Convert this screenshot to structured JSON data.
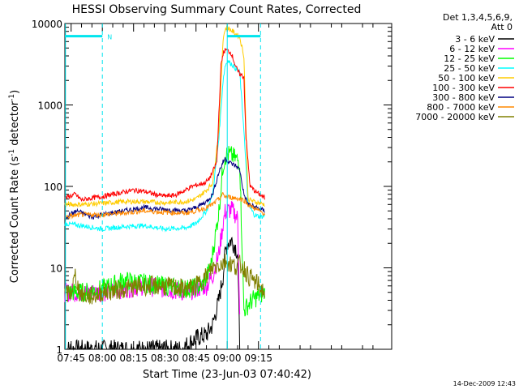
{
  "chart_data": {
    "type": "line",
    "title": "HESSI Observing Summary Count Rates, Corrected",
    "xlabel": "Start Time (23-Jun-03 07:40:42)",
    "ylabel": "Corrected Count Rate (s",
    "ylabel_sup": "-1",
    "ylabel_mid": " detector",
    "ylabel_sup2": "-1",
    "ylabel_end": ")",
    "y_scale": "log",
    "ylim": [
      1,
      10000
    ],
    "xlim_minutes": [
      42,
      199
    ],
    "x_ticks": [
      {
        "label": "07:45",
        "minutes": 45
      },
      {
        "label": "08:00",
        "minutes": 60
      },
      {
        "label": "08:15",
        "minutes": 75
      },
      {
        "label": "08:30",
        "minutes": 90
      },
      {
        "label": "08:45",
        "minutes": 105
      },
      {
        "label": "09:00",
        "minutes": 120
      },
      {
        "label": "09:15",
        "minutes": 135
      }
    ],
    "y_ticks": [
      {
        "label": "1",
        "value": 1
      },
      {
        "label": "10",
        "value": 10
      },
      {
        "label": "100",
        "value": 100
      },
      {
        "label": "1000",
        "value": 1000
      },
      {
        "label": "10000",
        "value": 10000
      }
    ],
    "legend_header": [
      "Det 1,3,4,5,6,9,",
      "Att 0"
    ],
    "legend_position": "right",
    "footer_date": "14-Dec-2009 12:43",
    "night_marker": "N",
    "series": [
      {
        "name": "3 - 6 keV",
        "color": "#000000",
        "x": [
          42,
          60,
          70,
          80,
          90,
          98,
          102,
          106,
          110,
          113,
          116,
          118,
          119,
          120,
          122,
          124,
          125,
          126
        ],
        "y": [
          1,
          1,
          1,
          1,
          1,
          1,
          1.2,
          1.4,
          1.5,
          2,
          4,
          8,
          15,
          20,
          22,
          18,
          15,
          1
        ]
      },
      {
        "name": "6 - 12 keV",
        "color": "#ff00ff",
        "x": [
          42,
          60,
          70,
          80,
          90,
          100,
          105,
          110,
          113,
          116,
          118,
          119,
          120,
          122,
          124,
          125,
          126
        ],
        "y": [
          5,
          5,
          5.5,
          6,
          5.5,
          5,
          5.5,
          6,
          8,
          15,
          35,
          48,
          50,
          52,
          45,
          40,
          3
        ]
      },
      {
        "name": "12 - 25 keV",
        "color": "#00ff00",
        "x": [
          42,
          50,
          60,
          70,
          80,
          90,
          100,
          108,
          112,
          116,
          118,
          119,
          120,
          122,
          124,
          126,
          128,
          130,
          132,
          135,
          138
        ],
        "y": [
          5,
          5,
          5.5,
          7,
          6.5,
          6,
          5.5,
          6,
          10,
          50,
          180,
          230,
          250,
          240,
          220,
          200,
          3,
          3.5,
          4,
          4.5,
          5
        ]
      },
      {
        "name": "25 - 50 keV",
        "color": "#00ffff",
        "x": [
          42,
          50,
          60,
          70,
          80,
          90,
          100,
          105,
          110,
          113,
          116,
          118,
          119,
          120,
          122,
          124,
          126,
          128,
          130,
          133,
          136,
          138
        ],
        "y": [
          35,
          33,
          30,
          32,
          33,
          30,
          31,
          35,
          50,
          80,
          400,
          2000,
          3000,
          3500,
          3200,
          2800,
          2500,
          500,
          60,
          45,
          42,
          44
        ]
      },
      {
        "name": "50 - 100 keV",
        "color": "#ffcc00",
        "x": [
          42,
          50,
          60,
          70,
          80,
          90,
          100,
          105,
          110,
          113,
          116,
          118,
          119,
          120,
          122,
          124,
          126,
          128,
          130,
          133,
          136,
          138
        ],
        "y": [
          60,
          60,
          62,
          65,
          65,
          63,
          65,
          70,
          90,
          110,
          500,
          6500,
          8500,
          9000,
          8200,
          7500,
          6800,
          4000,
          70,
          65,
          62,
          60
        ]
      },
      {
        "name": "100 - 300 keV",
        "color": "#ff0000",
        "x": [
          42,
          47,
          50,
          55,
          60,
          70,
          75,
          80,
          85,
          90,
          95,
          100,
          103,
          106,
          109,
          111,
          113,
          115,
          116,
          117,
          118,
          119,
          120,
          121,
          122,
          123,
          124,
          125,
          126,
          127,
          128,
          129,
          131,
          134,
          138
        ],
        "y": [
          72,
          80,
          68,
          72,
          75,
          85,
          90,
          87,
          80,
          76,
          78,
          90,
          100,
          105,
          110,
          120,
          150,
          200,
          800,
          3000,
          4300,
          4700,
          4700,
          4500,
          4300,
          3600,
          3000,
          2600,
          2400,
          2300,
          2200,
          400,
          100,
          85,
          72
        ]
      },
      {
        "name": "300 - 800 keV",
        "color": "#000080",
        "x": [
          42,
          48,
          55,
          60,
          70,
          80,
          90,
          100,
          105,
          110,
          113,
          116,
          118,
          119,
          120,
          122,
          124,
          126,
          128,
          130,
          134,
          138
        ],
        "y": [
          42,
          50,
          42,
          45,
          50,
          55,
          52,
          50,
          55,
          65,
          80,
          150,
          200,
          220,
          210,
          190,
          180,
          160,
          80,
          60,
          55,
          50
        ]
      },
      {
        "name": "800 - 7000 keV",
        "color": "#ff8800",
        "x": [
          42,
          50,
          60,
          70,
          80,
          90,
          100,
          105,
          110,
          113,
          116,
          118,
          119,
          120,
          122,
          124,
          126,
          128,
          130,
          134,
          138
        ],
        "y": [
          42,
          45,
          45,
          47,
          50,
          48,
          47,
          50,
          55,
          60,
          70,
          80,
          75,
          75,
          73,
          72,
          70,
          68,
          60,
          52,
          46
        ]
      },
      {
        "name": "7000 - 20000 keV",
        "color": "#808000",
        "x": [
          42,
          45,
          47,
          49,
          52,
          56,
          60,
          70,
          80,
          90,
          100,
          105,
          110,
          113,
          116,
          118,
          119,
          120,
          122,
          124,
          126,
          128,
          130,
          134,
          138
        ],
        "y": [
          4.5,
          5,
          8,
          5,
          4.5,
          4.5,
          5,
          5.5,
          6,
          6,
          5.5,
          6,
          8,
          10,
          11,
          11.5,
          12,
          12,
          11,
          10.5,
          11,
          10,
          8,
          6.5,
          5
        ]
      }
    ]
  }
}
